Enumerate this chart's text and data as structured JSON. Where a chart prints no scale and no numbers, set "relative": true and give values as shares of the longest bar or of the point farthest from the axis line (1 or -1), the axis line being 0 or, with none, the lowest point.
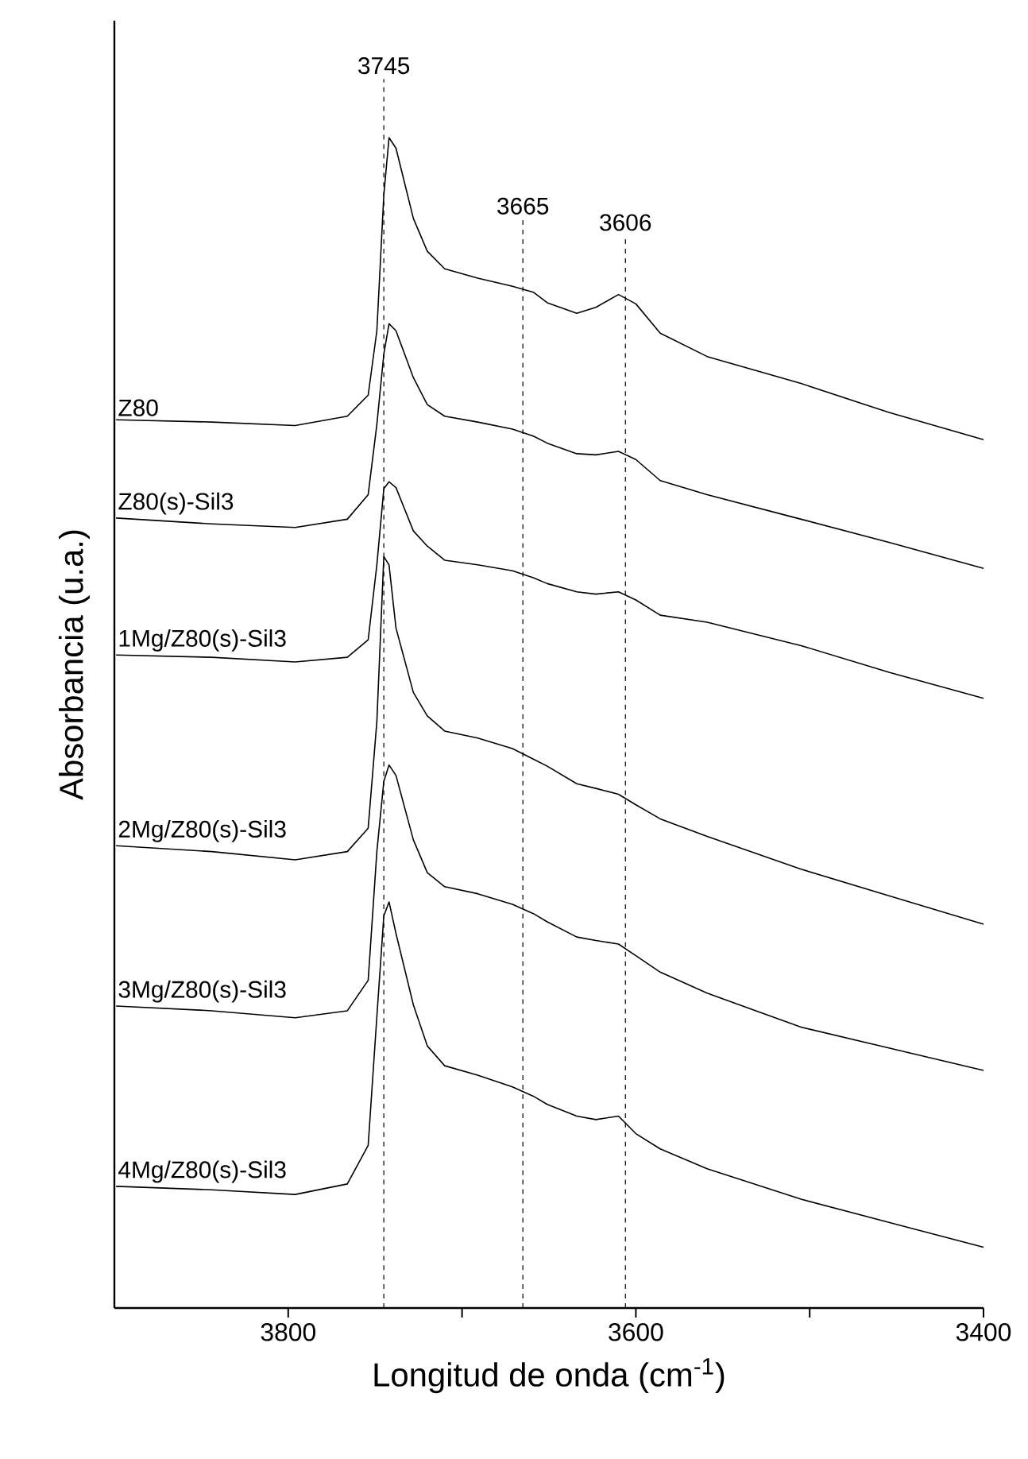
{
  "chart_data": {
    "type": "line",
    "relative": true,
    "marker": "none",
    "line_style": "solid",
    "xlabel": "Longitud de onda (cm$^{-1}$)",
    "ylabel": "Absorbancia (u.a.)",
    "xlim": [
      3900,
      3400
    ],
    "xticks": [
      3800,
      {
        "value": 3700,
        "label": null
      },
      3600,
      {
        "value": 3500,
        "label": null
      },
      3400
    ],
    "x": [
      3899,
      3844,
      3796,
      3766,
      3754,
      3749,
      3745,
      3742,
      3738,
      3728,
      3720,
      3710,
      3691,
      3671,
      3659,
      3651,
      3634,
      3623,
      3610,
      3600,
      3586,
      3559,
      3505,
      3454,
      3400
    ],
    "series": [
      {
        "name": "Z80",
        "color": "#000000",
        "values": [
          0.759,
          0.757,
          0.754,
          0.762,
          0.78,
          0.835,
          0.951,
          1.0,
          0.991,
          0.931,
          0.903,
          0.888,
          0.88,
          0.873,
          0.868,
          0.859,
          0.85,
          0.855,
          0.866,
          0.858,
          0.833,
          0.813,
          0.79,
          0.765,
          0.742
        ]
      },
      {
        "name": "Z80(s)-Sil3",
        "color": "#000000",
        "values": [
          0.675,
          0.67,
          0.667,
          0.674,
          0.695,
          0.755,
          0.815,
          0.841,
          0.835,
          0.795,
          0.772,
          0.762,
          0.757,
          0.751,
          0.745,
          0.739,
          0.73,
          0.729,
          0.732,
          0.725,
          0.707,
          0.695,
          0.674,
          0.654,
          0.632
        ]
      },
      {
        "name": "1Mg/Z80(s)-Sil3",
        "color": "#000000",
        "values": [
          0.558,
          0.556,
          0.552,
          0.556,
          0.571,
          0.635,
          0.7,
          0.706,
          0.701,
          0.664,
          0.651,
          0.639,
          0.635,
          0.63,
          0.624,
          0.619,
          0.612,
          0.61,
          0.612,
          0.605,
          0.592,
          0.586,
          0.566,
          0.543,
          0.521
        ]
      },
      {
        "name": "2Mg/Z80(s)-Sil3",
        "color": "#000000",
        "values": [
          0.395,
          0.39,
          0.383,
          0.39,
          0.41,
          0.501,
          0.642,
          0.635,
          0.581,
          0.526,
          0.506,
          0.493,
          0.487,
          0.478,
          0.469,
          0.463,
          0.448,
          0.444,
          0.439,
          0.43,
          0.418,
          0.403,
          0.375,
          0.352,
          0.328
        ]
      },
      {
        "name": "3Mg/Z80(s)-Sil3",
        "color": "#000000",
        "values": [
          0.258,
          0.254,
          0.248,
          0.254,
          0.28,
          0.39,
          0.45,
          0.464,
          0.455,
          0.4,
          0.372,
          0.36,
          0.354,
          0.345,
          0.337,
          0.33,
          0.317,
          0.314,
          0.311,
          0.301,
          0.287,
          0.269,
          0.24,
          0.222,
          0.203
        ]
      },
      {
        "name": "4Mg/Z80(s)-Sil3",
        "color": "#000000",
        "values": [
          0.104,
          0.101,
          0.097,
          0.106,
          0.139,
          0.249,
          0.335,
          0.347,
          0.32,
          0.259,
          0.224,
          0.207,
          0.199,
          0.189,
          0.181,
          0.174,
          0.164,
          0.161,
          0.164,
          0.149,
          0.136,
          0.119,
          0.093,
          0.073,
          0.052
        ]
      }
    ],
    "ref_lines": [
      {
        "axis": "x",
        "value": 3745,
        "label": "3745",
        "color": "#000000",
        "line_style": "dashed"
      },
      {
        "axis": "x",
        "value": 3665,
        "label": "3665",
        "color": "#000000",
        "line_style": "dashed"
      },
      {
        "axis": "x",
        "value": 3606,
        "label": "3606",
        "color": "#000000",
        "line_style": "dashed"
      }
    ]
  }
}
